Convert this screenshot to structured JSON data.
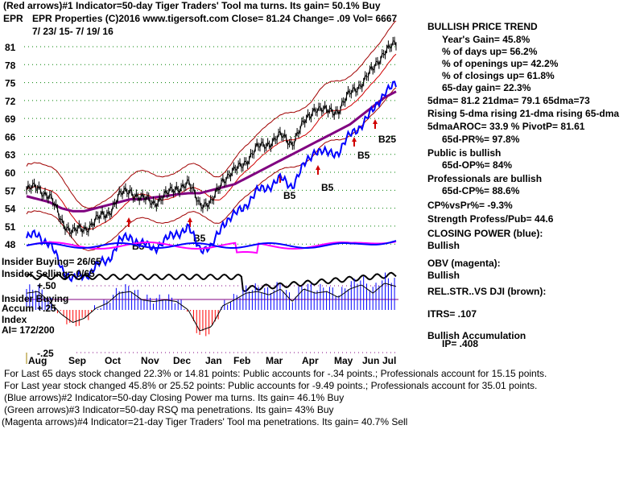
{
  "header": {
    "line1": "(Red arrows)#1 Indicator=50-day Tiger Traders' Tool ma turns. Its gain= 50.1% Buy",
    "ticker": "EPR",
    "line2": "EPR Properties  (C)2016 www.tigersoft.com    Close=  81.24  Change= .09 Vol= 6667",
    "dates": "7/ 23/ 15- 7/ 19/ 16"
  },
  "right": [
    "BULLISH PRICE TREND",
    "Year's Gain= 45.8%",
    "% of days up= 56.2%",
    "% of openings up= 42.2%",
    "% of closings up= 61.8%",
    "65-day gain= 22.3%",
    "5dma= 81.2 21dma= 79.1 65dma=73",
    "Rising 5-dma rising 21-dma rising 65-dma",
    "5dmaAROC= 33.9 %  PivotP= 81.61",
    "65d-PR%= 97.8%",
    "Public is bullish",
    "65d-OP%= 84%",
    "Professionals are bullish",
    "65d-CP%= 88.6%",
    "CP%vsPr%= -9.3%",
    "Strength Profess/Pub= 44.6",
    "CLOSING POWER (blue):",
    "Bullish",
    "OBV (magenta):",
    "Bullish",
    "REL.STR..VS DJI (brown):",
    "ITRS= .107",
    "Bullish Accumulation",
    "IP=  .408"
  ],
  "left_panel": {
    "insider_buying": "Insider Buying= 26/65",
    "insider_selling": "Insider Selling= 0/65",
    "plus50": "+.50",
    "insider_label": "Insider Buying",
    "accum": "Accum",
    "plus25": "+.25",
    "index": "Index",
    "ai": "AI= 172/200",
    "minus25": "-.25"
  },
  "signals": [
    "B5",
    "B5",
    "B5",
    "B5",
    "B5",
    "B25"
  ],
  "footer": [
    "For Last 65 days stock changed  22.3% or  14.81 points:  Public accounts for -.34 points.;  Professionals account for  15.15 points.",
    "For Last year stock changed  45.8% or  25.52 points:  Public accounts for -9.49 points.;  Professionals account for  35.01 points.",
    "(Blue arrows)#2 Indicator=50-day Closing Power ma turns. Its gain= 46.1% Buy",
    "(Green arrows)#3 Indicator=50-day RSQ ma penetrations. Its gain= 43% Buy",
    "(Magenta arrows)#4 Indicator=21-day Tiger Traders' Tool ma penetrations. Its gain= 40.7% Sell"
  ],
  "chart_data": {
    "type": "line",
    "title": "EPR Properties",
    "ylim": [
      46,
      84
    ],
    "yticks": [
      "81",
      "78",
      "75",
      "72",
      "69",
      "66",
      "63",
      "60",
      "57",
      "54",
      "51",
      "48"
    ],
    "months": [
      "Aug",
      "Sep",
      "Oct",
      "Nov",
      "Dec",
      "Jan",
      "Feb",
      "Mar",
      "Apr",
      "May",
      "Jun",
      "Jul"
    ],
    "price": [
      57,
      57.5,
      56,
      52,
      50,
      50.5,
      52,
      53,
      56,
      57,
      55.5,
      55,
      56,
      57.5,
      58,
      55,
      54.5,
      59,
      60,
      62,
      64,
      65,
      66,
      65,
      68,
      71,
      70,
      70.5,
      73,
      75,
      77,
      80.5,
      81.2
    ],
    "ma65": [
      56,
      55.5,
      55,
      54,
      53.5,
      53.5,
      54,
      54.5,
      55,
      55.5,
      55.5,
      55.8,
      56,
      56.3,
      56.5,
      56.5,
      57,
      57.5,
      58,
      59,
      60,
      61,
      62,
      63,
      64,
      65,
      66,
      67,
      68,
      69.5,
      71,
      72.5,
      73.5
    ],
    "accum": [
      0.2,
      0.22,
      0.1,
      -0.05,
      -0.15,
      -0.1,
      0.02,
      0.08,
      0.2,
      0.22,
      0.12,
      0.1,
      0.12,
      0.1,
      0.0,
      -0.25,
      -0.2,
      0.05,
      0.12,
      0.2,
      0.22,
      0.18,
      0.25,
      0.1,
      0.25,
      0.2,
      0.22,
      0.15,
      0.25,
      0.3,
      0.2,
      0.32,
      0.28
    ],
    "colors": {
      "price": "#000000",
      "bands": "#a00000",
      "ma65": "#800080",
      "cp": "#0000ff",
      "obv": "#ff00ff",
      "grid": "#008000"
    }
  }
}
